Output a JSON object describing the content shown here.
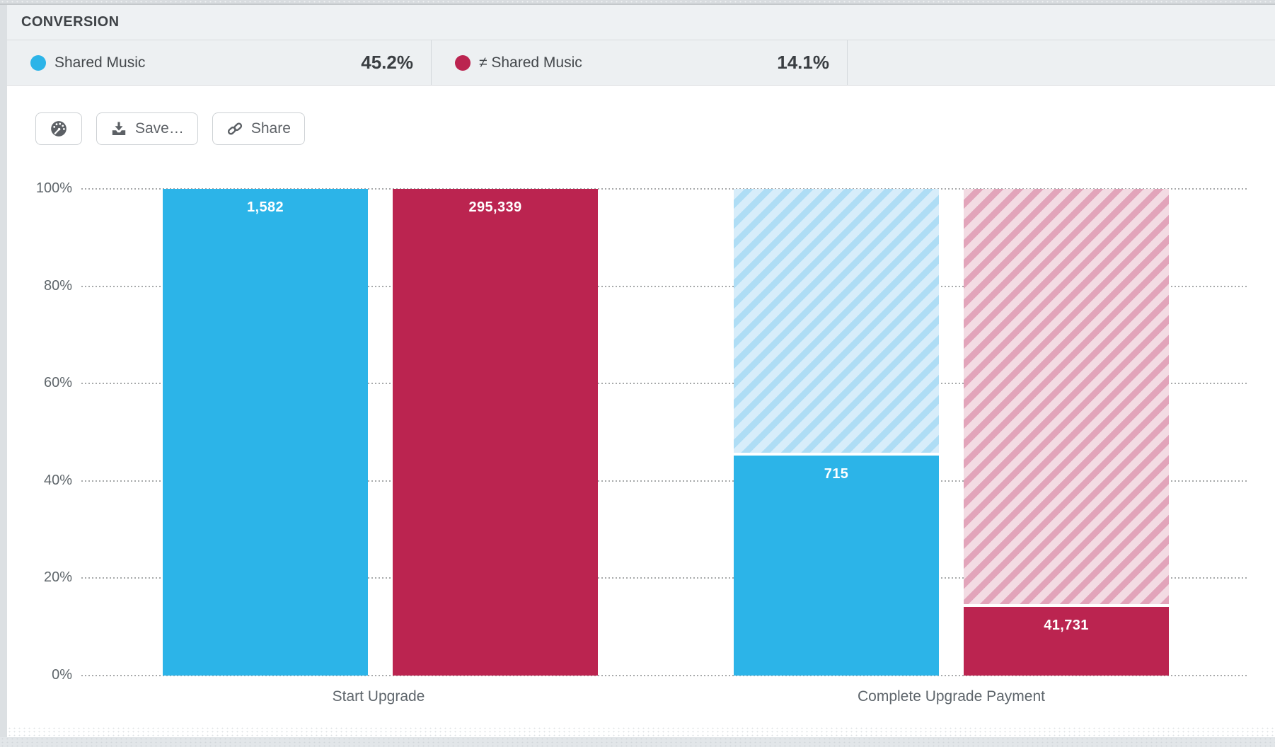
{
  "panel": {
    "title": "CONVERSION"
  },
  "legend": [
    {
      "name": "Shared Music",
      "value": "45.2%",
      "color": "#2cb4e8"
    },
    {
      "name": "≠ Shared Music",
      "value": "14.1%",
      "color": "#bb2450"
    }
  ],
  "toolbar": {
    "gauge_icon": "gauge-icon",
    "save_label": "Save…",
    "save_icon": "download-icon",
    "share_label": "Share",
    "share_icon": "link-icon"
  },
  "chart_data": {
    "type": "bar",
    "subtype": "funnel-conversion",
    "categories": [
      "Start Upgrade",
      "Complete Upgrade Payment"
    ],
    "series": [
      {
        "name": "Shared Music",
        "color": "#2cb4e8",
        "hatch_bg": "#d7edfa",
        "hatch_stripe": "#aeddf5",
        "counts": [
          1582,
          715
        ],
        "labels": [
          "1,582",
          "715"
        ],
        "percents": [
          100,
          45.2
        ]
      },
      {
        "name": "≠ Shared Music",
        "color": "#bb2450",
        "hatch_bg": "#f3dbe3",
        "hatch_stripe": "#e2a4ba",
        "counts": [
          295339,
          41731
        ],
        "labels": [
          "295,339",
          "41,731"
        ],
        "percents": [
          100,
          14.1
        ]
      }
    ],
    "yticks": [
      "100%",
      "80%",
      "60%",
      "40%",
      "20%",
      "0%"
    ],
    "ylim": [
      0,
      100
    ],
    "ylabel": "",
    "xlabel": "",
    "grid": "horizontal-dotted",
    "legend_position": "top",
    "hatch_note": "hatched area above each partial bar shows the unconverted remainder up to 100%"
  }
}
